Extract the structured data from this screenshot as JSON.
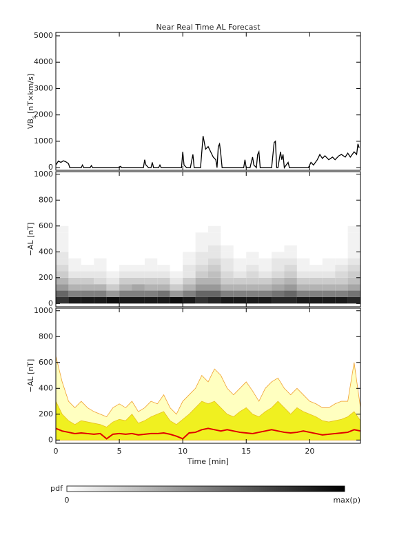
{
  "chart_data": [
    {
      "type": "line",
      "title": "Near Real Time AL Forecast",
      "ylabel": {
        "text": "VB",
        "sub": "s",
        "unit": "[nT×km/s]"
      },
      "color": "#000000",
      "xlim": [
        0,
        24
      ],
      "xticks": [
        0,
        5,
        10,
        15,
        20
      ],
      "ylim": [
        -100,
        5130
      ],
      "yticks": [
        0,
        1000,
        2000,
        3000,
        4000,
        5000
      ],
      "x": [
        0,
        0.2,
        0.4,
        0.6,
        0.8,
        1.0,
        1.1,
        2.0,
        2.1,
        2.2,
        2.7,
        2.8,
        2.9,
        5.0,
        5.1,
        5.2,
        6.9,
        7.0,
        7.1,
        7.3,
        7.5,
        7.6,
        7.7,
        8.1,
        8.2,
        8.3,
        9.9,
        10.0,
        10.1,
        10.3,
        10.6,
        10.8,
        10.9,
        11.4,
        11.6,
        11.8,
        12.0,
        12.2,
        12.4,
        12.6,
        12.7,
        12.8,
        12.9,
        13.0,
        13.1,
        14.8,
        14.9,
        15.0,
        15.3,
        15.5,
        15.6,
        15.8,
        15.9,
        16.0,
        16.1,
        17.0,
        17.2,
        17.3,
        17.4,
        17.5,
        17.7,
        17.8,
        17.9,
        18.0,
        18.3,
        18.4,
        19.9,
        20.1,
        20.3,
        20.6,
        20.8,
        21.0,
        21.2,
        21.5,
        21.8,
        22.0,
        22.3,
        22.5,
        22.8,
        23.0,
        23.2,
        23.5,
        23.7,
        23.8,
        23.9
      ],
      "values": [
        100,
        250,
        200,
        260,
        220,
        150,
        0,
        0,
        100,
        0,
        0,
        80,
        0,
        0,
        50,
        0,
        0,
        300,
        100,
        0,
        0,
        200,
        0,
        0,
        100,
        0,
        0,
        600,
        100,
        0,
        0,
        500,
        0,
        0,
        1200,
        700,
        800,
        600,
        400,
        300,
        0,
        800,
        900,
        500,
        0,
        0,
        300,
        0,
        0,
        400,
        100,
        0,
        500,
        600,
        0,
        0,
        950,
        1000,
        0,
        0,
        600,
        300,
        500,
        0,
        200,
        0,
        0,
        200,
        100,
        300,
        500,
        350,
        450,
        300,
        400,
        300,
        450,
        500,
        400,
        550,
        400,
        600,
        500,
        900,
        750
      ]
    },
    {
      "type": "heatmap",
      "ylabel": {
        "text": "−AL [nT]"
      },
      "xlim": [
        0,
        24
      ],
      "xticks": [
        0,
        5,
        10,
        15,
        20
      ],
      "ylim": [
        -25,
        1020
      ],
      "yticks": [
        0,
        200,
        400,
        600,
        800,
        1000
      ],
      "x_bins": [
        0,
        1,
        2,
        3,
        4,
        5,
        6,
        7,
        8,
        9,
        10,
        11,
        12,
        13,
        14,
        15,
        16,
        17,
        18,
        19,
        20,
        21,
        22,
        23,
        24
      ],
      "y_bins": [
        0,
        50,
        100,
        150,
        200,
        250,
        300,
        350,
        400,
        450,
        500,
        550,
        600
      ],
      "z": [
        [
          0.8,
          0.6,
          0.4,
          0.3,
          0.2,
          0.15,
          0.1,
          0.1,
          0.05,
          0.05,
          0.05,
          0.05
        ],
        [
          0.9,
          0.5,
          0.3,
          0.2,
          0.1,
          0.05,
          0.05,
          0,
          0,
          0,
          0,
          0
        ],
        [
          0.9,
          0.5,
          0.3,
          0.2,
          0.1,
          0.05,
          0,
          0,
          0,
          0,
          0,
          0
        ],
        [
          0.9,
          0.5,
          0.3,
          0.15,
          0.1,
          0.05,
          0.05,
          0,
          0,
          0,
          0,
          0
        ],
        [
          0.95,
          0.4,
          0.2,
          0.1,
          0.05,
          0,
          0,
          0,
          0,
          0,
          0,
          0
        ],
        [
          0.9,
          0.5,
          0.3,
          0.2,
          0.1,
          0.05,
          0,
          0,
          0,
          0,
          0,
          0
        ],
        [
          0.9,
          0.5,
          0.35,
          0.2,
          0.1,
          0.05,
          0,
          0,
          0,
          0,
          0,
          0
        ],
        [
          0.9,
          0.5,
          0.3,
          0.2,
          0.1,
          0.05,
          0.05,
          0,
          0,
          0,
          0,
          0
        ],
        [
          0.9,
          0.55,
          0.3,
          0.2,
          0.1,
          0.05,
          0,
          0,
          0,
          0,
          0,
          0
        ],
        [
          0.95,
          0.4,
          0.2,
          0.1,
          0.05,
          0,
          0,
          0,
          0,
          0,
          0,
          0
        ],
        [
          0.9,
          0.5,
          0.3,
          0.2,
          0.1,
          0.1,
          0.05,
          0.05,
          0,
          0,
          0,
          0
        ],
        [
          0.8,
          0.6,
          0.4,
          0.3,
          0.2,
          0.15,
          0.1,
          0.1,
          0.05,
          0.05,
          0.05,
          0
        ],
        [
          0.85,
          0.6,
          0.4,
          0.3,
          0.25,
          0.2,
          0.15,
          0.1,
          0.1,
          0.05,
          0.05,
          0.05
        ],
        [
          0.9,
          0.5,
          0.3,
          0.2,
          0.15,
          0.1,
          0.1,
          0.05,
          0.05,
          0,
          0,
          0
        ],
        [
          0.9,
          0.5,
          0.3,
          0.2,
          0.1,
          0.05,
          0.05,
          0,
          0,
          0,
          0,
          0
        ],
        [
          0.9,
          0.5,
          0.3,
          0.2,
          0.15,
          0.1,
          0.05,
          0.05,
          0,
          0,
          0,
          0
        ],
        [
          0.9,
          0.5,
          0.3,
          0.2,
          0.1,
          0.05,
          0.05,
          0,
          0,
          0,
          0,
          0
        ],
        [
          0.85,
          0.55,
          0.35,
          0.25,
          0.15,
          0.1,
          0.1,
          0.05,
          0,
          0,
          0,
          0
        ],
        [
          0.85,
          0.6,
          0.4,
          0.3,
          0.2,
          0.15,
          0.1,
          0.05,
          0.05,
          0,
          0,
          0
        ],
        [
          0.9,
          0.5,
          0.3,
          0.2,
          0.1,
          0.05,
          0.05,
          0,
          0,
          0,
          0,
          0
        ],
        [
          0.9,
          0.5,
          0.3,
          0.2,
          0.1,
          0.05,
          0,
          0,
          0,
          0,
          0,
          0
        ],
        [
          0.9,
          0.5,
          0.3,
          0.2,
          0.1,
          0.05,
          0.05,
          0,
          0,
          0,
          0,
          0
        ],
        [
          0.9,
          0.5,
          0.3,
          0.2,
          0.15,
          0.1,
          0.05,
          0,
          0,
          0,
          0,
          0
        ],
        [
          0.85,
          0.55,
          0.35,
          0.25,
          0.2,
          0.15,
          0.1,
          0.05,
          0.05,
          0.05,
          0.05,
          0.05
        ]
      ],
      "colorbar": {
        "label": "pdf",
        "min_label": "0",
        "max_label": "max(p)"
      }
    },
    {
      "type": "band",
      "ylabel": {
        "text": "−AL [nT]"
      },
      "xlabel": "Time [min]",
      "xlim": [
        0,
        24
      ],
      "xticks": [
        0,
        5,
        10,
        15,
        20
      ],
      "ylim": [
        -25,
        1020
      ],
      "yticks": [
        0,
        200,
        400,
        600,
        800,
        1000
      ],
      "x": [
        0,
        0.5,
        1,
        1.5,
        2,
        2.5,
        3,
        3.5,
        4,
        4.5,
        5,
        5.5,
        6,
        6.5,
        7,
        7.5,
        8,
        8.5,
        9,
        9.5,
        10,
        10.5,
        11,
        11.5,
        12,
        12.5,
        13,
        13.5,
        14,
        14.5,
        15,
        15.5,
        16,
        16.5,
        17,
        17.5,
        18,
        18.5,
        19,
        19.5,
        20,
        20.5,
        21,
        21.5,
        22,
        22.5,
        23,
        23.5,
        24
      ],
      "series": [
        {
          "style": "area",
          "color": "#ffffc0",
          "stroke": "#f0a030",
          "values": [
            650,
            450,
            300,
            250,
            300,
            250,
            220,
            200,
            180,
            250,
            280,
            250,
            300,
            220,
            250,
            300,
            280,
            350,
            250,
            200,
            300,
            350,
            400,
            500,
            450,
            550,
            500,
            400,
            350,
            400,
            450,
            380,
            300,
            400,
            450,
            480,
            400,
            350,
            400,
            350,
            300,
            280,
            250,
            250,
            280,
            300,
            300,
            600,
            250
          ]
        },
        {
          "style": "area",
          "color": "#f0f020",
          "stroke": "#e8c020",
          "values": [
            300,
            200,
            150,
            120,
            150,
            140,
            130,
            120,
            100,
            140,
            160,
            150,
            200,
            130,
            150,
            180,
            200,
            220,
            150,
            120,
            160,
            200,
            250,
            300,
            280,
            300,
            250,
            200,
            180,
            220,
            250,
            200,
            180,
            220,
            250,
            300,
            250,
            200,
            250,
            220,
            200,
            180,
            150,
            140,
            150,
            160,
            180,
            220,
            150
          ]
        },
        {
          "style": "line",
          "color": "#e00000",
          "values": [
            90,
            70,
            60,
            50,
            55,
            50,
            45,
            50,
            10,
            45,
            50,
            45,
            50,
            40,
            45,
            50,
            50,
            55,
            45,
            30,
            10,
            55,
            60,
            80,
            90,
            80,
            70,
            80,
            70,
            60,
            55,
            50,
            60,
            70,
            80,
            70,
            60,
            55,
            60,
            70,
            60,
            50,
            40,
            45,
            50,
            55,
            60,
            80,
            70
          ]
        }
      ]
    }
  ]
}
